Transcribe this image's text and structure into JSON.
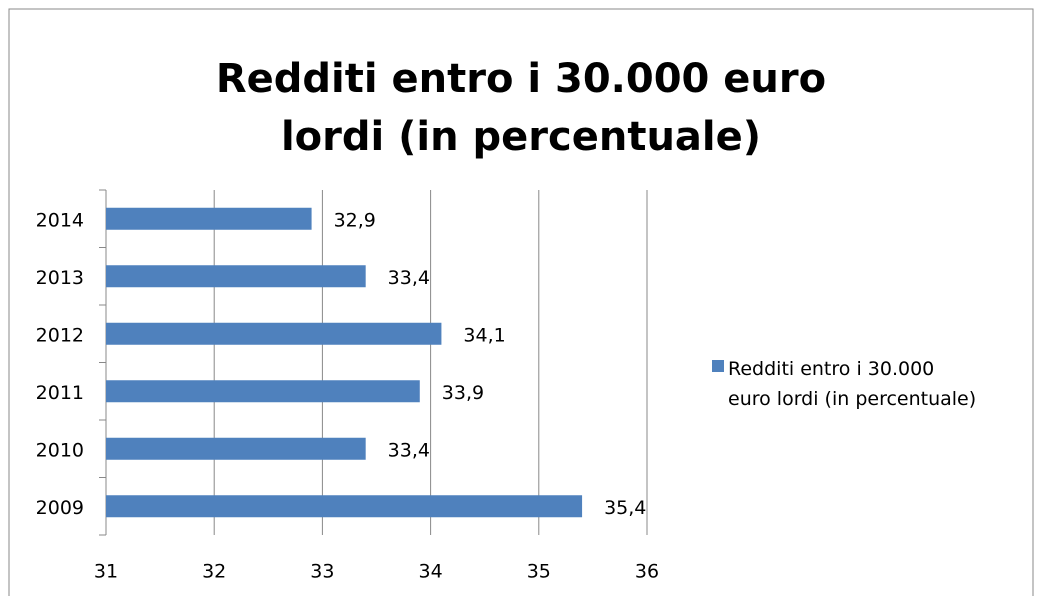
{
  "chart_data": {
    "type": "barh",
    "title": "Redditi entro i 30.000 euro lordi (in percentuale)",
    "categories": [
      "2009",
      "2010",
      "2011",
      "2012",
      "2013",
      "2014"
    ],
    "series": [
      {
        "name": "Redditi entro i 30.000 euro lordi (in percentuale)",
        "color": "#4f81bd",
        "values": [
          35.4,
          33.4,
          33.9,
          34.1,
          33.4,
          32.9
        ],
        "value_labels": [
          "35,4",
          "33,4",
          "33,9",
          "34,1",
          "33,4",
          "32,9"
        ]
      }
    ],
    "xlim": [
      31,
      36
    ],
    "xticks": [
      31,
      32,
      33,
      34,
      35,
      36
    ],
    "grid": true,
    "legend": "right"
  }
}
